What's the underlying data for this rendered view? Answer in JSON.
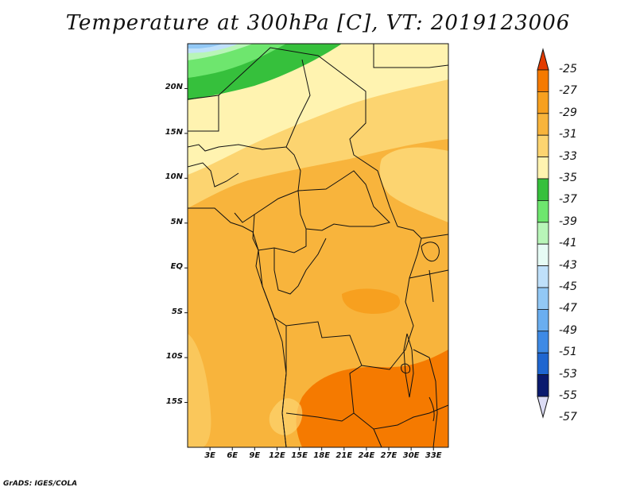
{
  "title": "Temperature at 300hPa [C], VT: 2019123006",
  "credit": "GrADS: IGES/COLA",
  "map": {
    "lon_range": [
      0,
      35
    ],
    "lat_range": [
      -20,
      25
    ],
    "y_ticks": [
      "20N",
      "15N",
      "10N",
      "5N",
      "EQ",
      "5S",
      "10S",
      "15S"
    ],
    "x_ticks": [
      "3E",
      "6E",
      "9E",
      "12E",
      "15E",
      "18E",
      "21E",
      "24E",
      "27E",
      "30E",
      "33E"
    ]
  },
  "colorbar": {
    "labels": [
      "-25",
      "-27",
      "-29",
      "-31",
      "-33",
      "-35",
      "-37",
      "-39",
      "-41",
      "-43",
      "-45",
      "-47",
      "-49",
      "-51",
      "-53",
      "-55",
      "-57"
    ],
    "colors": [
      "#e33b00",
      "#f57a00",
      "#f7a01f",
      "#f8b43c",
      "#fcd470",
      "#fff3b0",
      "#36c03c",
      "#6ee66e",
      "#b8f5b8",
      "#e6fbf4",
      "#bfe0fa",
      "#92c8f5",
      "#6aaef0",
      "#3e8ae5",
      "#1f66d0",
      "#134bb0",
      "#0a1a6e"
    ]
  }
}
